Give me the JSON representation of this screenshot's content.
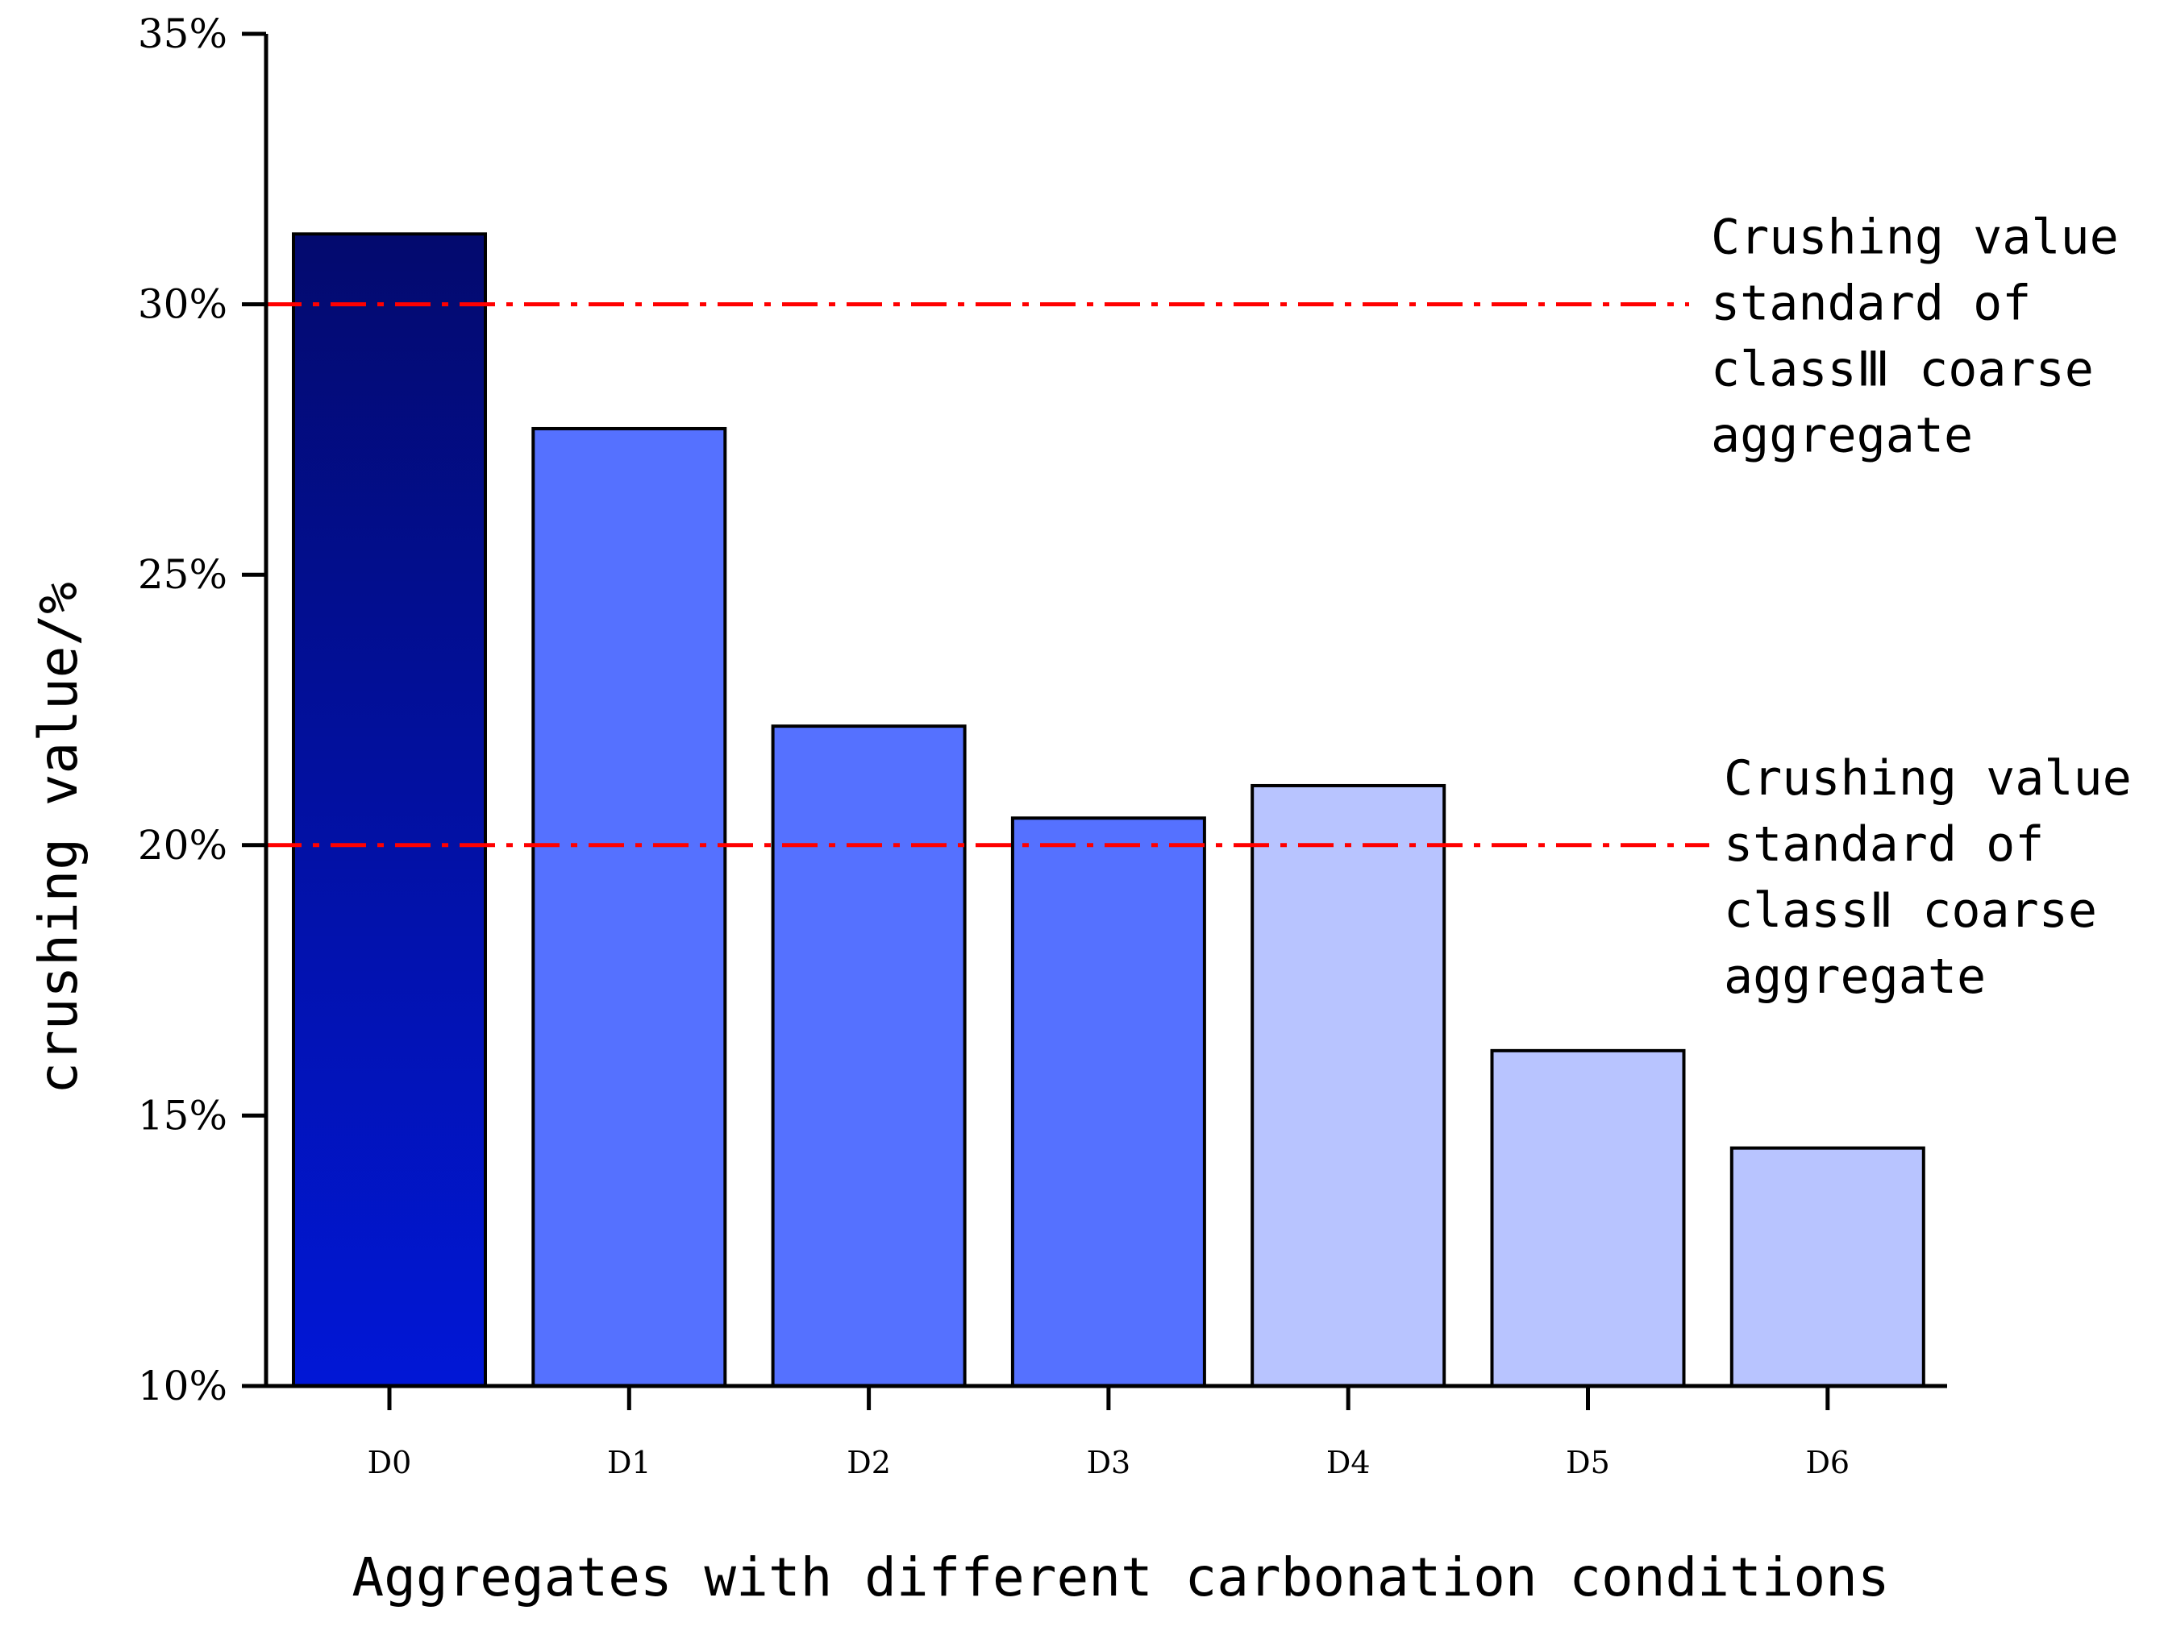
{
  "chart_data": {
    "type": "bar",
    "title": "",
    "xlabel": "Aggregates with different carbonation conditions",
    "ylabel": "crushing value/%",
    "ylim": [
      10,
      35
    ],
    "yticks": [
      10,
      15,
      20,
      25,
      30,
      35
    ],
    "ytick_labels": [
      "10%",
      "15%",
      "20%",
      "25%",
      "30%",
      "35%"
    ],
    "grid": false,
    "categories": [
      "D0",
      "D1",
      "D2",
      "D3",
      "D4",
      "D5",
      "D6"
    ],
    "values": [
      31.3,
      27.7,
      22.2,
      20.5,
      21.1,
      16.2,
      14.4
    ],
    "bar_colors": [
      "gradient-dark-blue",
      "#5571ff",
      "#5571ff",
      "#5571ff",
      "#b8c4ff",
      "#b8c4ff",
      "#b8c4ff"
    ],
    "gradient": {
      "top": "#030a6e",
      "bottom": "#0117d6"
    },
    "reference_lines": [
      {
        "value": 30,
        "color": "#ff0000",
        "style": "dash-dot",
        "label": [
          "Crushing value",
          "standard of",
          "classⅢ coarse",
          "aggregate"
        ]
      },
      {
        "value": 20,
        "color": "#ff0000",
        "style": "dash-dot",
        "label": [
          "Crushing value",
          "standard of",
          "classⅡ coarse",
          "aggregate"
        ]
      }
    ]
  }
}
